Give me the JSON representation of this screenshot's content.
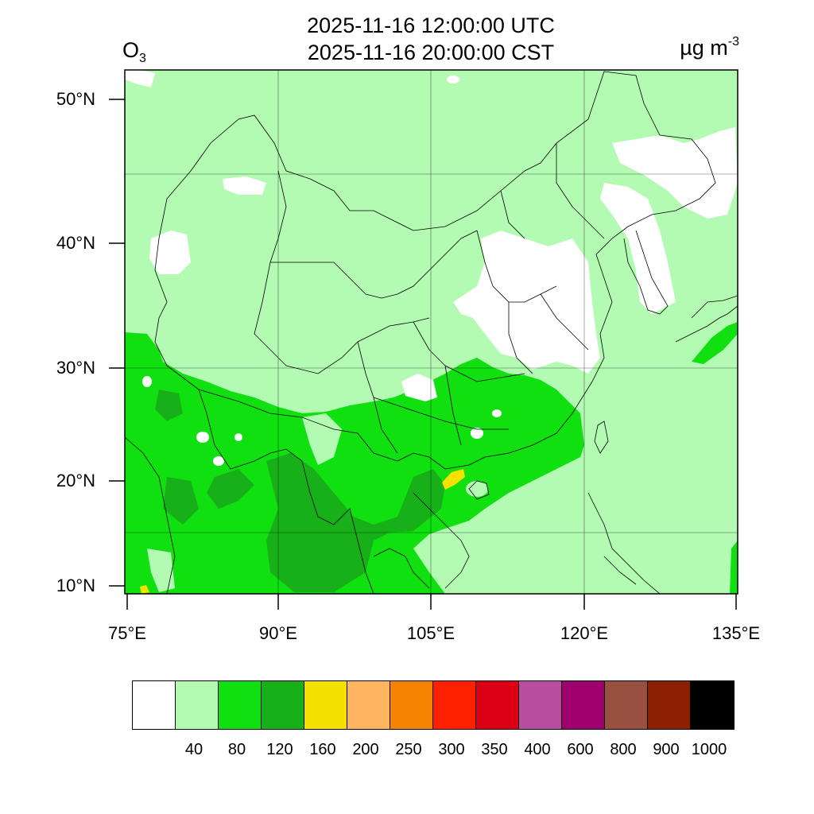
{
  "header": {
    "time_utc": "2025-11-16 12:00:00 UTC",
    "time_cst": "2025-11-16 20:00:00 CST",
    "species_main": "O",
    "species_sub": "3",
    "units_main": "µg m",
    "units_sup": "-3"
  },
  "map": {
    "lon_range": [
      75,
      135
    ],
    "lat_range": [
      9,
      52
    ],
    "lat_labels": [
      "10°N",
      "20°N",
      "30°N",
      "40°N",
      "50°N"
    ],
    "lon_labels": [
      "75°E",
      "90°E",
      "105°E",
      "120°E",
      "135°E"
    ],
    "background_color": "#b3fab3"
  },
  "colorbar": {
    "colors": [
      "#ffffff",
      "#b3fab3",
      "#10e010",
      "#18b018",
      "#f5e100",
      "#ffb460",
      "#f58200",
      "#ff2000",
      "#dc0014",
      "#b94ea0",
      "#a0006e",
      "#985040",
      "#8c2000",
      "#000000"
    ],
    "labels": [
      "40",
      "80",
      "120",
      "160",
      "200",
      "250",
      "300",
      "350",
      "400",
      "600",
      "800",
      "900",
      "1000"
    ]
  }
}
